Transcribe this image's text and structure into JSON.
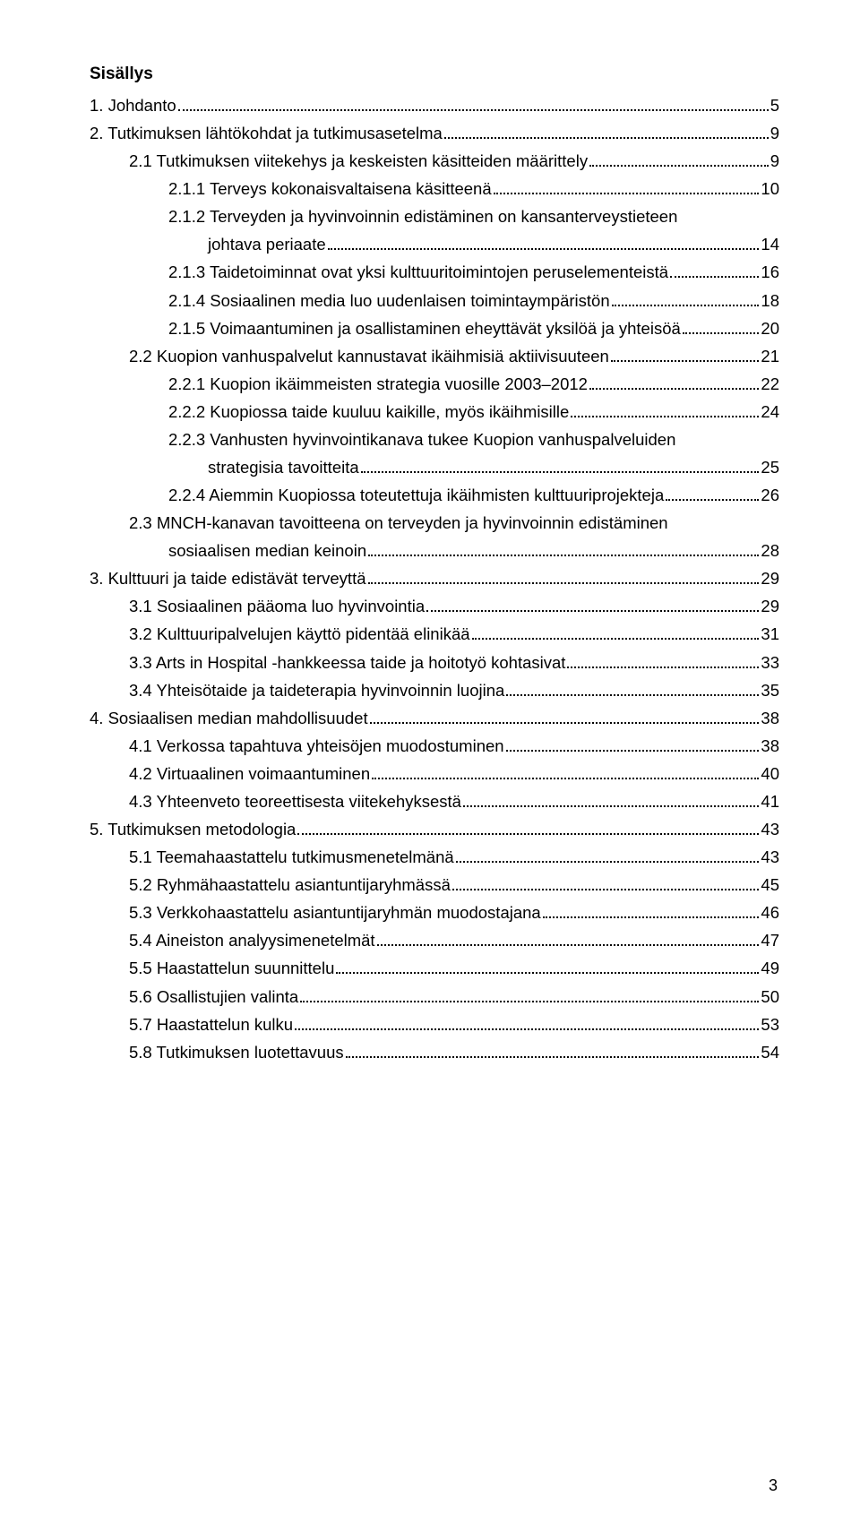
{
  "title": "Sisällys",
  "page_number": "3",
  "entries": [
    {
      "indent": 0,
      "label": "1. Johdanto",
      "page": "5"
    },
    {
      "indent": 0,
      "label": "2. Tutkimuksen lähtökohdat ja tutkimusasetelma",
      "page": "9"
    },
    {
      "indent": 1,
      "label": "2.1 Tutkimuksen viitekehys ja keskeisten käsitteiden määrittely",
      "page": "9"
    },
    {
      "indent": 2,
      "label": "2.1.1 Terveys kokonaisvaltaisena käsitteenä",
      "page": "10"
    },
    {
      "indent": 2,
      "label": "2.1.2 Terveyden ja hyvinvoinnin edistäminen on kansanterveystieteen",
      "cont": true
    },
    {
      "indent": "continue",
      "label": "johtava periaate",
      "page": "14"
    },
    {
      "indent": 2,
      "label": "2.1.3 Taidetoiminnat ovat yksi kulttuuritoimintojen peruselementeistä",
      "page": "16"
    },
    {
      "indent": 2,
      "label": "2.1.4 Sosiaalinen media luo uudenlaisen toimintaympäristön",
      "page": "18"
    },
    {
      "indent": 2,
      "label": "2.1.5 Voimaantuminen ja osallistaminen eheyttävät yksilöä ja yhteisöä",
      "page": "20"
    },
    {
      "indent": 1,
      "label": "2.2 Kuopion vanhuspalvelut kannustavat ikäihmisiä aktiivisuuteen",
      "page": "21"
    },
    {
      "indent": 2,
      "label": "2.2.1 Kuopion ikäimmeisten strategia vuosille 2003–2012",
      "page": "22"
    },
    {
      "indent": 2,
      "label": "2.2.2 Kuopiossa taide kuuluu kaikille, myös ikäihmisille",
      "page": "24"
    },
    {
      "indent": 2,
      "label": "2.2.3 Vanhusten hyvinvointikanava tukee Kuopion vanhuspalveluiden",
      "cont": true
    },
    {
      "indent": "continue",
      "label": "strategisia tavoitteita",
      "page": "25"
    },
    {
      "indent": 2,
      "label": "2.2.4 Aiemmin Kuopiossa toteutettuja ikäihmisten kulttuuriprojekteja",
      "page": "26"
    },
    {
      "indent": 1,
      "label": "2.3 MNCH-kanavan tavoitteena on terveyden ja hyvinvoinnin edistäminen",
      "cont": true
    },
    {
      "indent": "continue_short",
      "label": "sosiaalisen median keinoin",
      "page": "28"
    },
    {
      "indent": 0,
      "label": "3. Kulttuuri ja taide edistävät terveyttä",
      "page": "29"
    },
    {
      "indent": 1,
      "label": "3.1 Sosiaalinen pääoma luo hyvinvointia",
      "page": "29"
    },
    {
      "indent": 1,
      "label": "3.2 Kulttuuripalvelujen käyttö pidentää elinikää",
      "page": "31"
    },
    {
      "indent": 1,
      "label": "3.3 Arts in Hospital -hankkeessa taide ja hoitotyö kohtasivat",
      "page": "33"
    },
    {
      "indent": 1,
      "label": "3.4 Yhteisötaide ja taideterapia hyvinvoinnin luojina",
      "page": "35"
    },
    {
      "indent": 0,
      "label": "4. Sosiaalisen median mahdollisuudet",
      "page": "38"
    },
    {
      "indent": 1,
      "label": "4.1 Verkossa tapahtuva yhteisöjen muodostuminen",
      "page": "38"
    },
    {
      "indent": 1,
      "label": "4.2 Virtuaalinen voimaantuminen",
      "page": "40"
    },
    {
      "indent": 1,
      "label": "4.3 Yhteenveto teoreettisesta viitekehyksestä",
      "page": "41"
    },
    {
      "indent": 0,
      "label": "5. Tutkimuksen metodologia",
      "page": "43"
    },
    {
      "indent": 1,
      "label": "5.1 Teemahaastattelu tutkimusmenetelmänä",
      "page": "43"
    },
    {
      "indent": 1,
      "label": "5.2 Ryhmähaastattelu asiantuntijaryhmässä",
      "page": "45"
    },
    {
      "indent": 1,
      "label": "5.3 Verkkohaastattelu asiantuntijaryhmän muodostajana",
      "page": "46"
    },
    {
      "indent": 1,
      "label": "5.4 Aineiston analyysimenetelmät",
      "page": "47"
    },
    {
      "indent": 1,
      "label": "5.5 Haastattelun suunnittelu",
      "page": "49"
    },
    {
      "indent": 1,
      "label": "5.6 Osallistujien valinta",
      "page": "50"
    },
    {
      "indent": 1,
      "label": "5.7 Haastattelun kulku",
      "page": "53"
    },
    {
      "indent": 1,
      "label": "5.8 Tutkimuksen luotettavuus",
      "page": "54"
    }
  ]
}
